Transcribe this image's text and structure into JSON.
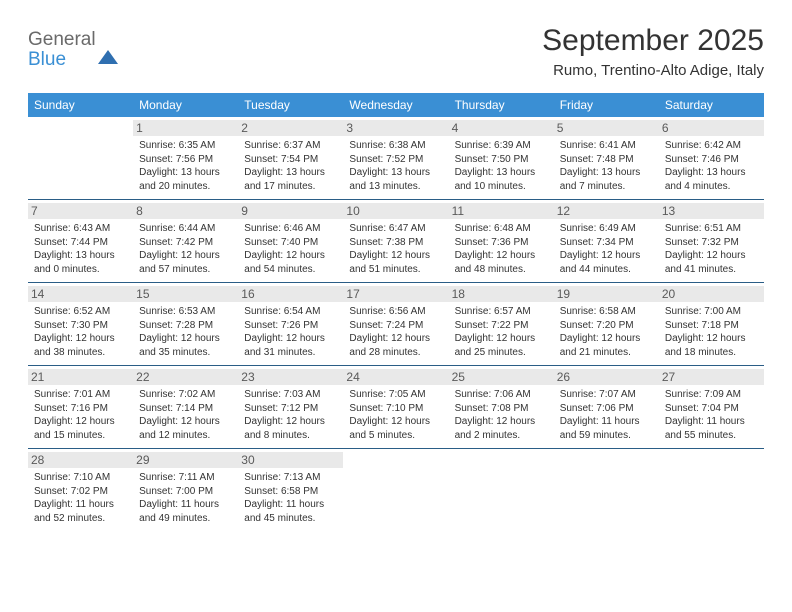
{
  "logo": {
    "line1": "General",
    "line2": "Blue"
  },
  "title": "September 2025",
  "subtitle": "Rumo, Trentino-Alto Adige, Italy",
  "colors": {
    "header_bg": "#3a8fd4",
    "header_text": "#ffffff",
    "rule": "#2a5d86",
    "daynum_bg": "#e9e9e9",
    "text": "#333333",
    "logo_gray": "#6a6a6a",
    "logo_blue": "#3a8fd4"
  },
  "fonts": {
    "title_pt": 30,
    "subtitle_pt": 15,
    "dow_pt": 12,
    "daynum_pt": 12,
    "body_pt": 10
  },
  "days_of_week": [
    "Sunday",
    "Monday",
    "Tuesday",
    "Wednesday",
    "Thursday",
    "Friday",
    "Saturday"
  ],
  "weeks": [
    [
      {
        "n": "",
        "blank": true
      },
      {
        "n": "1",
        "sr": "Sunrise: 6:35 AM",
        "ss": "Sunset: 7:56 PM",
        "dl": "Daylight: 13 hours and 20 minutes."
      },
      {
        "n": "2",
        "sr": "Sunrise: 6:37 AM",
        "ss": "Sunset: 7:54 PM",
        "dl": "Daylight: 13 hours and 17 minutes."
      },
      {
        "n": "3",
        "sr": "Sunrise: 6:38 AM",
        "ss": "Sunset: 7:52 PM",
        "dl": "Daylight: 13 hours and 13 minutes."
      },
      {
        "n": "4",
        "sr": "Sunrise: 6:39 AM",
        "ss": "Sunset: 7:50 PM",
        "dl": "Daylight: 13 hours and 10 minutes."
      },
      {
        "n": "5",
        "sr": "Sunrise: 6:41 AM",
        "ss": "Sunset: 7:48 PM",
        "dl": "Daylight: 13 hours and 7 minutes."
      },
      {
        "n": "6",
        "sr": "Sunrise: 6:42 AM",
        "ss": "Sunset: 7:46 PM",
        "dl": "Daylight: 13 hours and 4 minutes."
      }
    ],
    [
      {
        "n": "7",
        "sr": "Sunrise: 6:43 AM",
        "ss": "Sunset: 7:44 PM",
        "dl": "Daylight: 13 hours and 0 minutes."
      },
      {
        "n": "8",
        "sr": "Sunrise: 6:44 AM",
        "ss": "Sunset: 7:42 PM",
        "dl": "Daylight: 12 hours and 57 minutes."
      },
      {
        "n": "9",
        "sr": "Sunrise: 6:46 AM",
        "ss": "Sunset: 7:40 PM",
        "dl": "Daylight: 12 hours and 54 minutes."
      },
      {
        "n": "10",
        "sr": "Sunrise: 6:47 AM",
        "ss": "Sunset: 7:38 PM",
        "dl": "Daylight: 12 hours and 51 minutes."
      },
      {
        "n": "11",
        "sr": "Sunrise: 6:48 AM",
        "ss": "Sunset: 7:36 PM",
        "dl": "Daylight: 12 hours and 48 minutes."
      },
      {
        "n": "12",
        "sr": "Sunrise: 6:49 AM",
        "ss": "Sunset: 7:34 PM",
        "dl": "Daylight: 12 hours and 44 minutes."
      },
      {
        "n": "13",
        "sr": "Sunrise: 6:51 AM",
        "ss": "Sunset: 7:32 PM",
        "dl": "Daylight: 12 hours and 41 minutes."
      }
    ],
    [
      {
        "n": "14",
        "sr": "Sunrise: 6:52 AM",
        "ss": "Sunset: 7:30 PM",
        "dl": "Daylight: 12 hours and 38 minutes."
      },
      {
        "n": "15",
        "sr": "Sunrise: 6:53 AM",
        "ss": "Sunset: 7:28 PM",
        "dl": "Daylight: 12 hours and 35 minutes."
      },
      {
        "n": "16",
        "sr": "Sunrise: 6:54 AM",
        "ss": "Sunset: 7:26 PM",
        "dl": "Daylight: 12 hours and 31 minutes."
      },
      {
        "n": "17",
        "sr": "Sunrise: 6:56 AM",
        "ss": "Sunset: 7:24 PM",
        "dl": "Daylight: 12 hours and 28 minutes."
      },
      {
        "n": "18",
        "sr": "Sunrise: 6:57 AM",
        "ss": "Sunset: 7:22 PM",
        "dl": "Daylight: 12 hours and 25 minutes."
      },
      {
        "n": "19",
        "sr": "Sunrise: 6:58 AM",
        "ss": "Sunset: 7:20 PM",
        "dl": "Daylight: 12 hours and 21 minutes."
      },
      {
        "n": "20",
        "sr": "Sunrise: 7:00 AM",
        "ss": "Sunset: 7:18 PM",
        "dl": "Daylight: 12 hours and 18 minutes."
      }
    ],
    [
      {
        "n": "21",
        "sr": "Sunrise: 7:01 AM",
        "ss": "Sunset: 7:16 PM",
        "dl": "Daylight: 12 hours and 15 minutes."
      },
      {
        "n": "22",
        "sr": "Sunrise: 7:02 AM",
        "ss": "Sunset: 7:14 PM",
        "dl": "Daylight: 12 hours and 12 minutes."
      },
      {
        "n": "23",
        "sr": "Sunrise: 7:03 AM",
        "ss": "Sunset: 7:12 PM",
        "dl": "Daylight: 12 hours and 8 minutes."
      },
      {
        "n": "24",
        "sr": "Sunrise: 7:05 AM",
        "ss": "Sunset: 7:10 PM",
        "dl": "Daylight: 12 hours and 5 minutes."
      },
      {
        "n": "25",
        "sr": "Sunrise: 7:06 AM",
        "ss": "Sunset: 7:08 PM",
        "dl": "Daylight: 12 hours and 2 minutes."
      },
      {
        "n": "26",
        "sr": "Sunrise: 7:07 AM",
        "ss": "Sunset: 7:06 PM",
        "dl": "Daylight: 11 hours and 59 minutes."
      },
      {
        "n": "27",
        "sr": "Sunrise: 7:09 AM",
        "ss": "Sunset: 7:04 PM",
        "dl": "Daylight: 11 hours and 55 minutes."
      }
    ],
    [
      {
        "n": "28",
        "sr": "Sunrise: 7:10 AM",
        "ss": "Sunset: 7:02 PM",
        "dl": "Daylight: 11 hours and 52 minutes."
      },
      {
        "n": "29",
        "sr": "Sunrise: 7:11 AM",
        "ss": "Sunset: 7:00 PM",
        "dl": "Daylight: 11 hours and 49 minutes."
      },
      {
        "n": "30",
        "sr": "Sunrise: 7:13 AM",
        "ss": "Sunset: 6:58 PM",
        "dl": "Daylight: 11 hours and 45 minutes."
      },
      {
        "n": "",
        "blank": true
      },
      {
        "n": "",
        "blank": true
      },
      {
        "n": "",
        "blank": true
      },
      {
        "n": "",
        "blank": true
      }
    ]
  ]
}
